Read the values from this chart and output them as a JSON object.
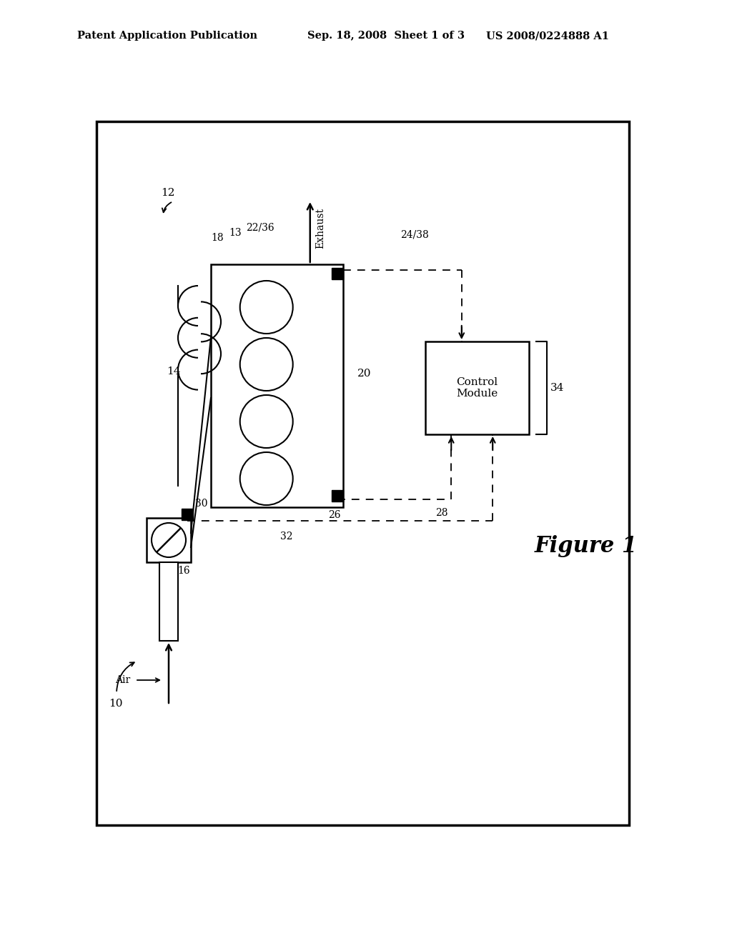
{
  "bg_color": "#ffffff",
  "header_left": "Patent Application Publication",
  "header_center": "Sep. 18, 2008  Sheet 1 of 3",
  "header_right": "US 2008/0224888 A1",
  "figure_label": "Figure 1",
  "label_10": "10",
  "label_12": "12",
  "label_14": "14",
  "label_16": "16",
  "label_18": "18",
  "label_13": "13",
  "label_2236": "22/36",
  "label_2438": "24/38",
  "label_20": "20",
  "label_26": "26",
  "label_28": "28",
  "label_30": "30",
  "label_32": "32",
  "label_34": "34",
  "label_exhaust": "Exhaust",
  "label_air": "Air",
  "label_control": "Control\nModule"
}
